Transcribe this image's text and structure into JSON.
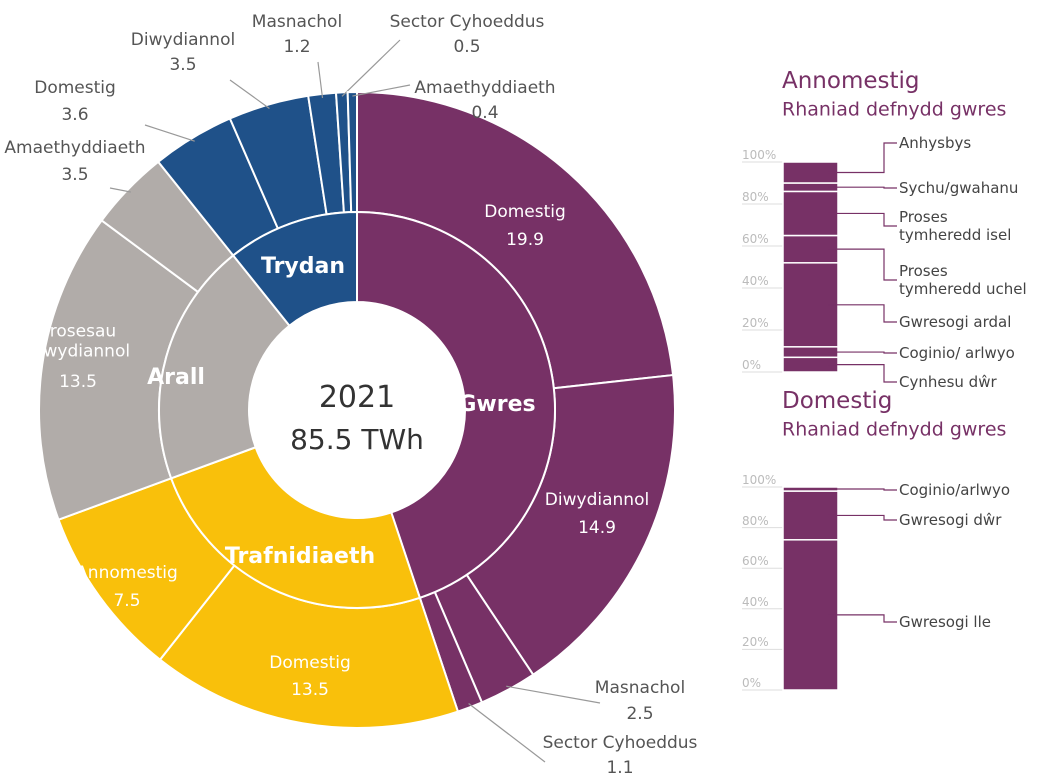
{
  "chart_data": [
    {
      "type": "sunburst",
      "title": "2021",
      "subtitle": "85.5 TWh",
      "groups": [
        {
          "name": "Gwres",
          "color": "#773166",
          "labels": [
            "Domestig",
            "Diwydiannol",
            "Masnachol",
            "Sector Cyhoeddus"
          ],
          "values": [
            19.9,
            14.9,
            2.5,
            1.1
          ]
        },
        {
          "name": "Trafnidiaeth",
          "color": "#f9c00b",
          "labels": [
            "Domestig",
            "Annomestig"
          ],
          "values": [
            13.5,
            7.5
          ]
        },
        {
          "name": "Arall",
          "color": "#b1aca9",
          "labels": [
            "Prosesau diwydiannol",
            "Amaethyddiaeth"
          ],
          "values": [
            13.5,
            3.5
          ]
        },
        {
          "name": "Trydan",
          "color": "#1f5189",
          "labels": [
            "Domestig",
            "Diwydiannol",
            "Masnachol",
            "Sector Cyhoeddus",
            "Amaethyddiaeth"
          ],
          "values": [
            3.6,
            3.5,
            1.2,
            0.5,
            0.4
          ]
        }
      ]
    },
    {
      "type": "stacked_bar",
      "title": "Annomestig",
      "subtitle": "Rhaniad defnydd gwres",
      "color": "#773166",
      "labels": [
        "Cynhesu dŵr",
        "Coginio/ arlwyo",
        "Gwresogi ardal",
        "Proses tymheredd uchel",
        "Proses tymheredd isel",
        "Sychu/gwahanu",
        "Anhysbys"
      ],
      "values": [
        7,
        5,
        40,
        13,
        21,
        4,
        10
      ],
      "ylim": [
        0,
        100
      ],
      "yticks": [
        {
          "value": 0,
          "label": "0%"
        },
        {
          "value": 20,
          "label": "20%"
        },
        {
          "value": 40,
          "label": "40%"
        },
        {
          "value": 60,
          "label": "60%"
        },
        {
          "value": 80,
          "label": "80%"
        },
        {
          "value": 100,
          "label": "100%"
        }
      ]
    },
    {
      "type": "stacked_bar",
      "title": "Domestig",
      "subtitle": "Rhaniad defnydd gwres",
      "color": "#773166",
      "labels": [
        "Gwresogi lle",
        "Gwresogi dŵr",
        "Coginio/arlwyo"
      ],
      "values": [
        74,
        24,
        2
      ],
      "ylim": [
        0,
        100
      ],
      "yticks": [
        {
          "value": 0,
          "label": "0%"
        },
        {
          "value": 20,
          "label": "20%"
        },
        {
          "value": 40,
          "label": "40%"
        },
        {
          "value": 60,
          "label": "60%"
        },
        {
          "value": 80,
          "label": "80%"
        },
        {
          "value": 100,
          "label": "100%"
        }
      ]
    }
  ]
}
